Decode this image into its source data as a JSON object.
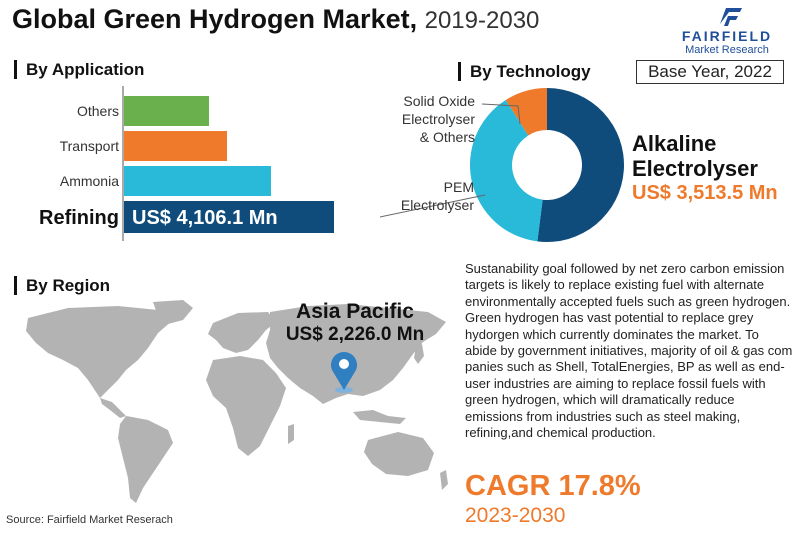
{
  "header": {
    "title": "Global Green Hydrogen Market,",
    "years": "2019-2030",
    "logo_brand": "FAIRFIELD",
    "logo_sub": "Market Research",
    "base_year": "Base Year, 2022"
  },
  "sections": {
    "application": "By Application",
    "technology": "By Technology",
    "region": "By Region"
  },
  "region": {
    "name": "Asia Pacific",
    "value": "US$ 2,226.0 Mn"
  },
  "description": "Sustanability goal followed by net zero carbon emission targets is likely to replace existing fuel with alternate environmentally accepted fuels such as green hydrogen. Green hydrogen has vast potential to replace grey hydorgen which currently dominates the market. To abide by government initiatives, majority of oil & gas com panies such as Shell, TotalEnergies, BP as well as end-user industries are aiming to replace fossil fuels with green hydrogen, which will dramatically reduce emissions from industries such as steel making, refining,and chemical production.",
  "cagr": "CAGR 17.8%",
  "cagr_period": "2023-2030",
  "source": "Source: Fairfield Market Reserach",
  "colors": {
    "green": "#6ab04c",
    "orange": "#ef7a2b",
    "cyan": "#29b9d9",
    "navy": "#0f4c7c",
    "map_gray": "#b3b3b3",
    "pin_blue": "#2f7fc1"
  },
  "chart_data": [
    {
      "type": "bar",
      "orientation": "horizontal",
      "categories": [
        "Others",
        "Transport",
        "Ammonia",
        "Refining"
      ],
      "values": [
        850,
        1030,
        1470,
        2100
      ],
      "data_labels": [
        "",
        "",
        "",
        "US$ 4,106.1 Mn"
      ],
      "highlight": "Refining",
      "colors": [
        "#6ab04c",
        "#ef7a2b",
        "#29b9d9",
        "#0f4c7c"
      ]
    },
    {
      "type": "pie",
      "donut": true,
      "labels": [
        "Alkaline Electrolyser",
        "PEM Electrolyser",
        "Solid Oxide Electrolyser & Others"
      ],
      "values": [
        52,
        39,
        9
      ],
      "highlight_label": "Alkaline Electrolyser",
      "highlight_value": "US$ 3,513.5 Mn",
      "colors": [
        "#0f4c7c",
        "#29b9d9",
        "#ef7a2b"
      ]
    }
  ]
}
